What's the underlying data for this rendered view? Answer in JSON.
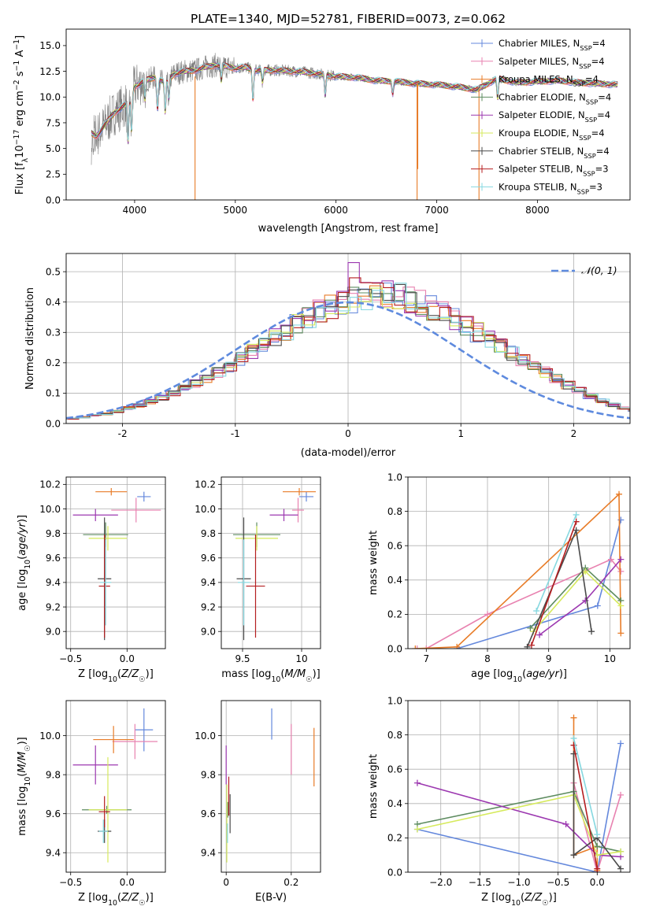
{
  "title": "PLATE=1340, MJD=52781, FIBERID=0073, z=0.062",
  "colors": {
    "chabrier_miles": "#6488dc",
    "salpeter_miles": "#e882b0",
    "kroupa_miles": "#e87c28",
    "chabrier_elodie": "#5e8c60",
    "salpeter_elodie": "#9c38b0",
    "kroupa_elodie": "#d6ea5c",
    "chabrier_stelib": "#4a4a4a",
    "salpeter_stelib": "#b41e20",
    "kroupa_stelib": "#86d8e0",
    "data_spectrum": "#808080",
    "normal_curve": "#5e8ade",
    "grid": "#b0b0b0"
  },
  "chart_data": [
    {
      "id": "spectrum",
      "type": "line",
      "xlabel": "wavelength [Angstrom, rest frame]",
      "ylabel": "Flux [f_λ 10^-17 erg cm^-2 s^-1 A^-1]",
      "xlim": [
        3320,
        8920
      ],
      "ylim": [
        0,
        16.6
      ],
      "xticks": [
        4000,
        5000,
        6000,
        7000,
        8000
      ],
      "yticks": [
        0.0,
        2.5,
        5.0,
        7.5,
        10.0,
        12.5,
        15.0
      ],
      "grid": false,
      "legend_position": "top-right",
      "legend": [
        {
          "label": "Chabrier MILES, N_SSP=4",
          "color": "#6488dc"
        },
        {
          "label": "Salpeter MILES, N_SSP=4",
          "color": "#e882b0"
        },
        {
          "label": "Kroupa MILES, N_SSP=4",
          "color": "#e87c28"
        },
        {
          "label": "Chabrier ELODIE, N_SSP=4",
          "color": "#5e8c60"
        },
        {
          "label": "Salpeter ELODIE, N_SSP=4",
          "color": "#9c38b0"
        },
        {
          "label": "Kroupa ELODIE, N_SSP=4",
          "color": "#d6ea5c"
        },
        {
          "label": "Chabrier STELIB, N_SSP=4",
          "color": "#4a4a4a"
        },
        {
          "label": "Salpeter STELIB, N_SSP=3",
          "color": "#b41e20"
        },
        {
          "label": "Kroupa STELIB, N_SSP=3",
          "color": "#86d8e0"
        }
      ],
      "continuum": {
        "x": [
          3570,
          3620,
          3700,
          3800,
          3900,
          3950,
          4000,
          4100,
          4200,
          4300,
          4400,
          4500,
          4600,
          4700,
          4800,
          4900,
          5000,
          5100,
          5200,
          5400,
          5600,
          5800,
          6000,
          6200,
          6400,
          6600,
          6800,
          7000,
          7200,
          7400,
          7600,
          7800,
          8000,
          8200,
          8400,
          8600,
          8800
        ],
        "y": [
          6.5,
          6.2,
          7.2,
          8.5,
          9.2,
          9.6,
          11.0,
          11.6,
          11.9,
          11.4,
          12.3,
          12.5,
          12.6,
          12.9,
          13.1,
          13.0,
          12.8,
          12.9,
          12.6,
          12.6,
          12.5,
          12.3,
          12.0,
          11.9,
          11.6,
          11.5,
          11.3,
          11.2,
          11.0,
          10.7,
          11.8,
          11.4,
          11.5,
          11.6,
          11.4,
          11.3,
          11.2
        ]
      },
      "absorption_lines": [
        {
          "x": 3934,
          "depth": 4.0
        },
        {
          "x": 3969,
          "depth": 3.5
        },
        {
          "x": 4102,
          "depth": 2.0
        },
        {
          "x": 4227,
          "depth": 3.0
        },
        {
          "x": 4304,
          "depth": 3.0
        },
        {
          "x": 4340,
          "depth": 2.0
        },
        {
          "x": 4861,
          "depth": 1.5
        },
        {
          "x": 5175,
          "depth": 3.0
        },
        {
          "x": 5270,
          "depth": 1.2
        },
        {
          "x": 5893,
          "depth": 2.0
        },
        {
          "x": 6563,
          "depth": 1.2
        },
        {
          "x": 7605,
          "depth": 2.0
        }
      ],
      "masked_spikes": [
        {
          "x": 4600,
          "from": 0.0,
          "to": 12.0
        },
        {
          "x": 6805,
          "from": 0.0,
          "to": 11.3
        },
        {
          "x": 6812,
          "from": 3.0,
          "to": 11.3
        },
        {
          "x": 7420,
          "from": 0.0,
          "to": 10.8
        }
      ]
    },
    {
      "id": "residuals",
      "type": "step",
      "xlabel": "(data-model)/error",
      "ylabel": "Normed distribution",
      "xlim": [
        -2.5,
        2.5
      ],
      "ylim": [
        0,
        0.56
      ],
      "xticks": [
        -2,
        -1,
        0,
        1,
        2
      ],
      "yticks": [
        0.0,
        0.1,
        0.2,
        0.3,
        0.4,
        0.5
      ],
      "grid": true,
      "legend_position": "top-right",
      "legend": [
        {
          "label": "𝒩(0, 1)",
          "color": "#5e8ade",
          "style": "dashed"
        }
      ],
      "bin_width": 0.1,
      "bin_start": -2.5,
      "base_values": [
        0.016,
        0.021,
        0.027,
        0.032,
        0.04,
        0.05,
        0.06,
        0.072,
        0.086,
        0.1,
        0.115,
        0.132,
        0.15,
        0.17,
        0.19,
        0.212,
        0.235,
        0.258,
        0.281,
        0.305,
        0.328,
        0.35,
        0.37,
        0.385,
        0.397,
        0.408,
        0.42,
        0.425,
        0.425,
        0.418,
        0.408,
        0.396,
        0.38,
        0.362,
        0.342,
        0.32,
        0.3,
        0.278,
        0.256,
        0.232,
        0.21,
        0.19,
        0.168,
        0.147,
        0.126,
        0.108,
        0.092,
        0.076,
        0.062,
        0.05,
        0.04,
        0.032,
        0.025,
        0.02,
        0.016
      ],
      "normal_curve": {
        "mean": 0,
        "sigma": 1
      }
    },
    {
      "id": "age-vs-z",
      "type": "errorbar",
      "xlabel": "Z [log10(Z/Z☉)]",
      "ylabel": "age [log10(age/yr)]",
      "xlim": [
        -0.54,
        0.34
      ],
      "ylim": [
        8.86,
        10.26
      ],
      "xticks": [
        -0.5,
        0.0
      ],
      "xtick_labels": [
        "−0.5",
        "0.0"
      ],
      "yticks": [
        9.0,
        9.2,
        9.4,
        9.6,
        9.8,
        10.0,
        10.2
      ],
      "grid": true,
      "points": [
        {
          "color": "#6488dc",
          "x": 0.15,
          "xerr": 0.06,
          "y": 10.1,
          "yerr": 0.04
        },
        {
          "color": "#e882b0",
          "x": 0.08,
          "xerr": 0.22,
          "y": 9.99,
          "yerr": 0.1
        },
        {
          "color": "#e87c28",
          "x": -0.14,
          "xerr": 0.14,
          "y": 10.14,
          "yerr": 0.03
        },
        {
          "color": "#5e8c60",
          "x": -0.19,
          "xerr": 0.2,
          "y": 9.79,
          "yerr": 0.1
        },
        {
          "color": "#9c38b0",
          "x": -0.28,
          "xerr": 0.2,
          "y": 9.95,
          "yerr": 0.05
        },
        {
          "color": "#d6ea5c",
          "x": -0.17,
          "xerr": 0.17,
          "y": 9.76,
          "yerr": 0.1
        },
        {
          "color": "#4a4a4a",
          "x": -0.2,
          "xerr": 0.06,
          "y": 9.43,
          "yerr": 0.5
        },
        {
          "color": "#b41e20",
          "x": -0.2,
          "xerr": 0.05,
          "y": 9.37,
          "yerr": 0.42
        },
        {
          "color": "#86d8e0",
          "x": -0.19,
          "xerr": 0.05,
          "y": 9.4,
          "yerr": 0.35
        }
      ]
    },
    {
      "id": "age-vs-mass",
      "type": "errorbar",
      "xlabel": "mass [log10(M/M☉)]",
      "ylabel": "",
      "xlim": [
        9.32,
        10.16
      ],
      "ylim": [
        8.86,
        10.26
      ],
      "xticks": [
        9.5,
        10.0
      ],
      "yticks": [
        9.0,
        9.2,
        9.4,
        9.6,
        9.8,
        10.0,
        10.2
      ],
      "grid": true,
      "points": [
        {
          "color": "#6488dc",
          "x": 10.04,
          "xerr": 0.06,
          "y": 10.1,
          "yerr": 0.04
        },
        {
          "color": "#e882b0",
          "x": 9.97,
          "xerr": 0.05,
          "y": 9.99,
          "yerr": 0.1
        },
        {
          "color": "#e87c28",
          "x": 9.98,
          "xerr": 0.14,
          "y": 10.14,
          "yerr": 0.03
        },
        {
          "color": "#5e8c60",
          "x": 9.62,
          "xerr": 0.2,
          "y": 9.79,
          "yerr": 0.1
        },
        {
          "color": "#9c38b0",
          "x": 9.85,
          "xerr": 0.12,
          "y": 9.95,
          "yerr": 0.05
        },
        {
          "color": "#d6ea5c",
          "x": 9.62,
          "xerr": 0.18,
          "y": 9.76,
          "yerr": 0.1
        },
        {
          "color": "#4a4a4a",
          "x": 9.51,
          "xerr": 0.06,
          "y": 9.43,
          "yerr": 0.5
        },
        {
          "color": "#b41e20",
          "x": 9.61,
          "xerr": 0.08,
          "y": 9.37,
          "yerr": 0.42
        },
        {
          "color": "#86d8e0",
          "x": 9.51,
          "xerr": 0.05,
          "y": 9.4,
          "yerr": 0.35
        }
      ]
    },
    {
      "id": "mass-weight-vs-age",
      "type": "line",
      "xlabel": "age [log10(age/yr)]",
      "ylabel": "mass weight",
      "xlim": [
        6.7,
        10.33
      ],
      "ylim": [
        0,
        1.0
      ],
      "xticks": [
        7,
        8,
        9,
        10
      ],
      "yticks": [
        0.0,
        0.2,
        0.4,
        0.6,
        0.8,
        1.0
      ],
      "grid": true,
      "series": [
        {
          "color": "#6488dc",
          "x": [
            7.5,
            9.8,
            10.18
          ],
          "y": [
            0.0,
            0.25,
            0.75
          ]
        },
        {
          "color": "#e882b0",
          "x": [
            6.85,
            7.0,
            8.0,
            10.02,
            10.18
          ],
          "y": [
            0.0,
            0.0,
            0.2,
            0.52,
            0.45
          ]
        },
        {
          "color": "#e87c28",
          "x": [
            6.82,
            7.5,
            10.15,
            10.18
          ],
          "y": [
            0.0,
            0.01,
            0.9,
            0.09
          ]
        },
        {
          "color": "#5e8c60",
          "x": [
            8.7,
            9.6,
            10.18
          ],
          "y": [
            0.12,
            0.47,
            0.28
          ]
        },
        {
          "color": "#9c38b0",
          "x": [
            8.85,
            9.6,
            10.18
          ],
          "y": [
            0.08,
            0.28,
            0.52
          ]
        },
        {
          "color": "#d6ea5c",
          "x": [
            8.75,
            9.6,
            10.18
          ],
          "y": [
            0.1,
            0.45,
            0.25
          ]
        },
        {
          "color": "#4a4a4a",
          "x": [
            8.65,
            9.45,
            9.7
          ],
          "y": [
            0.01,
            0.69,
            0.1
          ]
        },
        {
          "color": "#b41e20",
          "x": [
            8.72,
            9.45
          ],
          "y": [
            0.02,
            0.74
          ]
        },
        {
          "color": "#86d8e0",
          "x": [
            8.8,
            9.45
          ],
          "y": [
            0.22,
            0.78
          ]
        }
      ]
    },
    {
      "id": "mass-vs-z",
      "type": "errorbar",
      "xlabel": "Z [log10(Z/Z☉)]",
      "ylabel": "mass [log10(M/M☉)]",
      "xlim": [
        -0.54,
        0.34
      ],
      "ylim": [
        9.3,
        10.18
      ],
      "xticks": [
        -0.5,
        0.0
      ],
      "xtick_labels": [
        "−0.5",
        "0.0"
      ],
      "yticks": [
        9.4,
        9.6,
        9.8,
        10.0
      ],
      "grid": true,
      "points": [
        {
          "color": "#6488dc",
          "x": 0.15,
          "xerr": 0.08,
          "y": 10.03,
          "yerr": 0.11
        },
        {
          "color": "#e882b0",
          "x": 0.07,
          "xerr": 0.2,
          "y": 9.97,
          "yerr": 0.09
        },
        {
          "color": "#e87c28",
          "x": -0.12,
          "xerr": 0.18,
          "y": 9.98,
          "yerr": 0.07
        },
        {
          "color": "#5e8c60",
          "x": -0.18,
          "xerr": 0.22,
          "y": 9.62,
          "yerr": 0.02
        },
        {
          "color": "#9c38b0",
          "x": -0.28,
          "xerr": 0.2,
          "y": 9.85,
          "yerr": 0.1
        },
        {
          "color": "#d6ea5c",
          "x": -0.17,
          "xerr": 0.17,
          "y": 9.62,
          "yerr": 0.27
        },
        {
          "color": "#4a4a4a",
          "x": -0.2,
          "xerr": 0.06,
          "y": 9.51,
          "yerr": 0.06
        },
        {
          "color": "#b41e20",
          "x": -0.2,
          "xerr": 0.05,
          "y": 9.61,
          "yerr": 0.08
        },
        {
          "color": "#86d8e0",
          "x": -0.21,
          "xerr": 0.04,
          "y": 9.51,
          "yerr": 0.06
        }
      ]
    },
    {
      "id": "mass-vs-ebv",
      "type": "errorbar",
      "xlabel": "E(B-V)",
      "ylabel": "",
      "xlim": [
        -0.015,
        0.29
      ],
      "ylim": [
        9.3,
        10.18
      ],
      "xticks": [
        0.0,
        0.2
      ],
      "yticks": [
        9.4,
        9.6,
        9.8,
        10.0
      ],
      "grid": true,
      "points": [
        {
          "color": "#6488dc",
          "x": 0.14,
          "xerr": 0,
          "y": 10.06,
          "yerr": 0.08
        },
        {
          "color": "#e882b0",
          "x": 0.2,
          "xerr": 0,
          "y": 9.93,
          "yerr": 0.13
        },
        {
          "color": "#e87c28",
          "x": 0.27,
          "xerr": 0,
          "y": 9.89,
          "yerr": 0.15
        },
        {
          "color": "#5e8c60",
          "x": 0.005,
          "xerr": 0,
          "y": 9.62,
          "yerr": 0.04
        },
        {
          "color": "#9c38b0",
          "x": 0.0,
          "xerr": 0,
          "y": 9.85,
          "yerr": 0.1
        },
        {
          "color": "#d6ea5c",
          "x": 0.002,
          "xerr": 0,
          "y": 9.55,
          "yerr": 0.2
        },
        {
          "color": "#4a4a4a",
          "x": 0.012,
          "xerr": 0,
          "y": 9.6,
          "yerr": 0.1
        },
        {
          "color": "#b41e20",
          "x": 0.008,
          "xerr": 0,
          "y": 9.69,
          "yerr": 0.1
        },
        {
          "color": "#86d8e0",
          "x": 0.004,
          "xerr": 0,
          "y": 9.5,
          "yerr": 0.05
        }
      ]
    },
    {
      "id": "mass-weight-vs-z",
      "type": "line",
      "xlabel": "Z [log10(Z/Z☉)]",
      "ylabel": "mass weight",
      "xlim": [
        -2.42,
        0.42
      ],
      "ylim": [
        0,
        1.0
      ],
      "xticks": [
        -2.0,
        -1.5,
        -1.0,
        -0.5,
        0.0
      ],
      "xtick_labels": [
        "−2.0",
        "−1.5",
        "−1.0",
        "−0.5",
        "0.0"
      ],
      "yticks": [
        0.0,
        0.2,
        0.4,
        0.6,
        0.8,
        1.0
      ],
      "grid": true,
      "series": [
        {
          "color": "#6488dc",
          "x": [
            -2.3,
            0.0,
            0.3
          ],
          "y": [
            0.25,
            0.0,
            0.75
          ]
        },
        {
          "color": "#e882b0",
          "x": [
            -0.3,
            0.0,
            0.3
          ],
          "y": [
            0.52,
            0.0,
            0.45
          ]
        },
        {
          "color": "#e87c28",
          "x": [
            -0.3,
            -0.3,
            0.0,
            0.0
          ],
          "y": [
            0.9,
            0.1,
            0.15,
            0.01
          ]
        },
        {
          "color": "#5e8c60",
          "x": [
            -2.3,
            -0.3,
            0.0,
            0.3
          ],
          "y": [
            0.28,
            0.47,
            0.15,
            0.12
          ]
        },
        {
          "color": "#9c38b0",
          "x": [
            -2.3,
            -0.4,
            0.0,
            0.3
          ],
          "y": [
            0.52,
            0.28,
            0.1,
            0.09
          ]
        },
        {
          "color": "#d6ea5c",
          "x": [
            -2.3,
            -0.3,
            0.0,
            0.3
          ],
          "y": [
            0.25,
            0.45,
            0.1,
            0.12
          ]
        },
        {
          "color": "#4a4a4a",
          "x": [
            -0.3,
            -0.3,
            0.0,
            0.3
          ],
          "y": [
            0.69,
            0.1,
            0.2,
            0.02
          ]
        },
        {
          "color": "#b41e20",
          "x": [
            -0.3,
            0.0
          ],
          "y": [
            0.74,
            0.02
          ]
        },
        {
          "color": "#86d8e0",
          "x": [
            -0.3,
            0.0
          ],
          "y": [
            0.78,
            0.22
          ]
        }
      ]
    }
  ]
}
